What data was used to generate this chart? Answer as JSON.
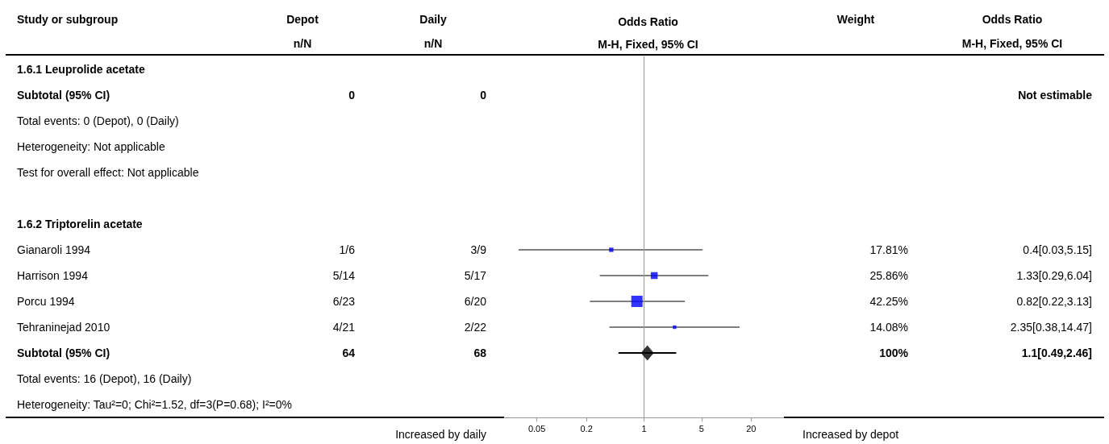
{
  "chart_data": [
    {
      "type": "other",
      "ylabel": "Study or subgroup",
      "categories": [
        "Depot\nn/N",
        "Daily\nn/N",
        "Weight",
        "Odds Ratio\nM-H, Fixed, 95% CI"
      ],
      "y_categories": [
        "1.6.1 Leuprolide acetate",
        "Subtotal (95% CI)",
        "Total events: 0 (Depot), 0 (Daily)",
        "Heterogeneity: Not applicable",
        "Test for overall effect: Not applicable",
        null,
        "1.6.2 Triptorelin acetate",
        "Gianaroli 1994",
        "Harrison 1994",
        "Porcu 1994",
        "Tehraninejad 2010",
        "Subtotal (95% CI)",
        "Total events: 16 (Depot), 16 (Daily)",
        "Heterogeneity: Tau²=0; Chi²=1.52, df=3(P=0.68); I²=0%"
      ],
      "cell_labels": [
        [
          null,
          null,
          null,
          null
        ],
        [
          "0",
          "0",
          null,
          "Not estimable"
        ],
        [
          null,
          null,
          null,
          null
        ],
        [
          null,
          null,
          null,
          null
        ],
        [
          null,
          null,
          null,
          null
        ],
        [
          null,
          null,
          null,
          null
        ],
        [
          null,
          null,
          null,
          null
        ],
        [
          "1/6",
          "3/9",
          "17.81%",
          "0.4[0.03,5.15]"
        ],
        [
          "5/14",
          "5/17",
          "25.86%",
          "1.33[0.29,6.04]"
        ],
        [
          "6/23",
          "6/20",
          "42.25%",
          "0.82[0.22,3.13]"
        ],
        [
          "4/21",
          "2/22",
          "14.08%",
          "2.35[0.38,14.47]"
        ],
        [
          "64",
          "68",
          "100%",
          "1.1[0.49,2.46]"
        ],
        [
          null,
          null,
          null,
          null
        ],
        [
          null,
          null,
          null,
          null
        ]
      ]
    },
    {
      "type": "scatter",
      "title": "Odds Ratio",
      "subtitle": "M-H, Fixed, 95% CI",
      "orientation": "horizontal",
      "log": "x",
      "xlim": [
        0.02,
        50
      ],
      "xticks": [
        0.05,
        0.2,
        1,
        5,
        20
      ],
      "grid": false,
      "categories": [
        null,
        null,
        null,
        null,
        null,
        null,
        null,
        null,
        null,
        null,
        null,
        null,
        null,
        null
      ],
      "ref_lines": [
        {
          "axis": "x",
          "value": 1,
          "color": "#999999"
        }
      ],
      "annotations": [
        "Increased by daily",
        "Increased by depot"
      ],
      "series": [
        {
          "type": "bubble",
          "marker": "square",
          "color": "#0000ff",
          "values": [
            null,
            null,
            null,
            null,
            null,
            null,
            null,
            0.4,
            1.33,
            0.82,
            2.35,
            null,
            null,
            null
          ],
          "errors": [
            null,
            null,
            null,
            null,
            null,
            null,
            null,
            [
              0.03,
              5.15
            ],
            [
              0.29,
              6.04
            ],
            [
              0.22,
              3.13
            ],
            [
              0.38,
              14.47
            ],
            null,
            null,
            null
          ],
          "sizes": [
            null,
            null,
            null,
            null,
            null,
            null,
            null,
            0.15,
            0.37,
            1,
            0.1,
            null,
            null,
            null
          ]
        },
        {
          "type": "scatter",
          "marker": "diamond",
          "color": "#000000",
          "values": [
            null,
            null,
            null,
            null,
            null,
            null,
            null,
            null,
            null,
            null,
            null,
            1.1,
            null,
            null
          ],
          "errors": [
            null,
            null,
            null,
            null,
            null,
            null,
            null,
            null,
            null,
            null,
            null,
            [
              0.49,
              2.46
            ],
            null,
            null
          ]
        }
      ]
    }
  ]
}
